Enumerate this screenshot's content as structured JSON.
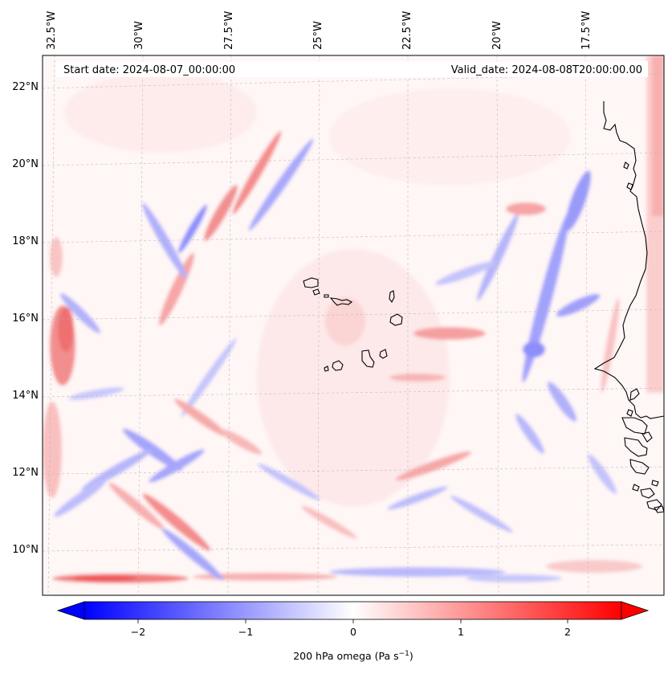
{
  "map": {
    "start_date_label": "Start date: 2024-08-07_00:00:00",
    "valid_date_label": "Valid_date: 2024-08-08T20:00:00.00",
    "lon_labels": [
      "32.5°W",
      "30°W",
      "27.5°W",
      "25°W",
      "22.5°W",
      "20°W",
      "17.5°W"
    ],
    "lat_labels": [
      "22°N",
      "20°N",
      "18°N",
      "16°N",
      "14°N",
      "12°N",
      "10°N"
    ],
    "field": "200 hPa omega",
    "colormap": "bwr",
    "coastline_color": "#000000"
  },
  "colorbar": {
    "label": "200 hPa omega (Pa s",
    "label_sup": "−1",
    "label_close": ")",
    "ticks": [
      "−2",
      "−1",
      "0",
      "1",
      "2"
    ],
    "tick_values": [
      -2,
      -1,
      0,
      1,
      2
    ],
    "range": [
      -2.5,
      2.5
    ],
    "extend": "both",
    "low_color": "#0000ff",
    "mid_color": "#ffffff",
    "high_color": "#ff0000"
  }
}
